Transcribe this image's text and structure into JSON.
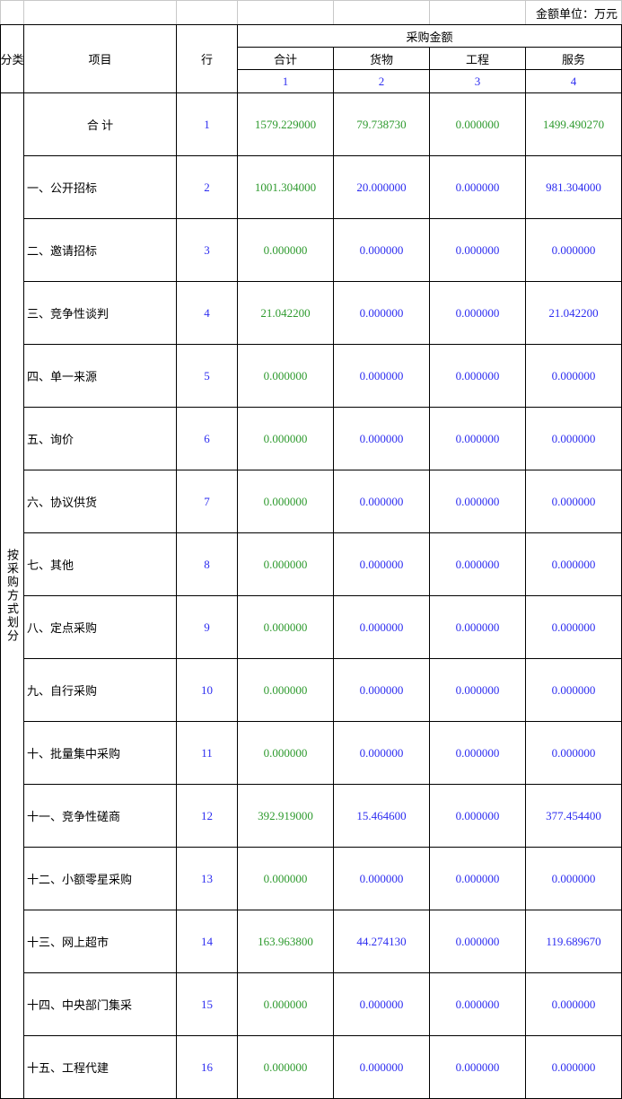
{
  "header": {
    "unit_label": "金额单位：万元",
    "category": "分类",
    "item": "项目",
    "row": "行",
    "group": "采购金额",
    "columns": [
      "合计",
      "货物",
      "工程",
      "服务"
    ],
    "column_numbers": [
      "1",
      "2",
      "3",
      "4"
    ]
  },
  "category_label": "按采购方式划分",
  "rows": [
    {
      "item": "合 计",
      "row": "1",
      "values": [
        "1579.229000",
        "79.738730",
        "0.000000",
        "1499.490270"
      ]
    },
    {
      "item": "一、公开招标",
      "row": "2",
      "values": [
        "1001.304000",
        "20.000000",
        "0.000000",
        "981.304000"
      ]
    },
    {
      "item": "二、邀请招标",
      "row": "3",
      "values": [
        "0.000000",
        "0.000000",
        "0.000000",
        "0.000000"
      ]
    },
    {
      "item": "三、竞争性谈判",
      "row": "4",
      "values": [
        "21.042200",
        "0.000000",
        "0.000000",
        "21.042200"
      ]
    },
    {
      "item": "四、单一来源",
      "row": "5",
      "values": [
        "0.000000",
        "0.000000",
        "0.000000",
        "0.000000"
      ]
    },
    {
      "item": "五、询价",
      "row": "6",
      "values": [
        "0.000000",
        "0.000000",
        "0.000000",
        "0.000000"
      ]
    },
    {
      "item": "六、协议供货",
      "row": "7",
      "values": [
        "0.000000",
        "0.000000",
        "0.000000",
        "0.000000"
      ]
    },
    {
      "item": "七、其他",
      "row": "8",
      "values": [
        "0.000000",
        "0.000000",
        "0.000000",
        "0.000000"
      ]
    },
    {
      "item": "八、定点采购",
      "row": "9",
      "values": [
        "0.000000",
        "0.000000",
        "0.000000",
        "0.000000"
      ]
    },
    {
      "item": "九、自行采购",
      "row": "10",
      "values": [
        "0.000000",
        "0.000000",
        "0.000000",
        "0.000000"
      ]
    },
    {
      "item": "十、批量集中采购",
      "row": "11",
      "values": [
        "0.000000",
        "0.000000",
        "0.000000",
        "0.000000"
      ]
    },
    {
      "item": "十一、竞争性磋商",
      "row": "12",
      "values": [
        "392.919000",
        "15.464600",
        "0.000000",
        "377.454400"
      ]
    },
    {
      "item": "十二、小额零星采购",
      "row": "13",
      "values": [
        "0.000000",
        "0.000000",
        "0.000000",
        "0.000000"
      ]
    },
    {
      "item": "十三、网上超市",
      "row": "14",
      "values": [
        "163.963800",
        "44.274130",
        "0.000000",
        "119.689670"
      ]
    },
    {
      "item": "十四、中央部门集采",
      "row": "15",
      "values": [
        "0.000000",
        "0.000000",
        "0.000000",
        "0.000000"
      ]
    },
    {
      "item": "十五、工程代建",
      "row": "16",
      "values": [
        "0.000000",
        "0.000000",
        "0.000000",
        "0.000000"
      ]
    }
  ]
}
